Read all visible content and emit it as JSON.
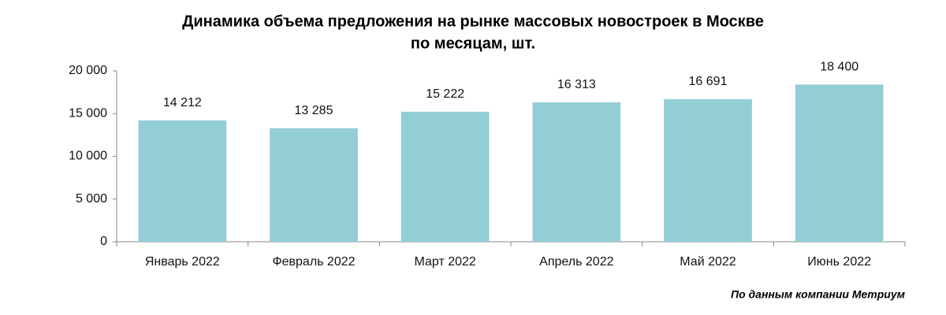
{
  "chart_data": {
    "type": "bar",
    "title": [
      "Динамика объема предложения на рынке массовых новостроек в Москве",
      "по месяцам, шт."
    ],
    "categories": [
      "Январь 2022",
      "Февраль 2022",
      "Март 2022",
      "Апрель 2022",
      "Май 2022",
      "Июнь 2022"
    ],
    "values": [
      14212,
      13285,
      15222,
      16313,
      16691,
      18400
    ],
    "value_labels": [
      "14 212",
      "13 285",
      "15 222",
      "16 313",
      "16 691",
      "18 400"
    ],
    "color": "#93cdd6",
    "ylim": [
      0,
      20000
    ],
    "yticks": [
      0,
      {
        "value": 5000,
        "label": "5 000"
      },
      {
        "value": 10000,
        "label": "10 000"
      },
      {
        "value": 15000,
        "label": "15 000"
      },
      {
        "value": 20000,
        "label": "20 000"
      }
    ],
    "source": "По данным компании Метриум"
  }
}
